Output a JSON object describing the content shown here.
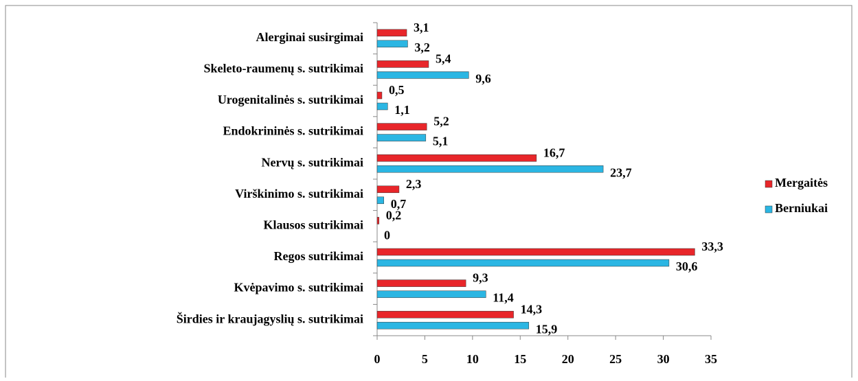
{
  "chart_data": {
    "type": "bar",
    "orientation": "horizontal",
    "categories": [
      "Alerginai susirgimai",
      "Skeleto-raumenų s. sutrikimai",
      "Urogenitalinės s. sutrikimai",
      "Endokrininės s. sutrikimai",
      "Nervų s. sutrikimai",
      "Virškinimo s. sutrikimai",
      "Klausos sutrikimai",
      "Regos sutrikimai",
      "Kvėpavimo s. sutrikimai",
      "Širdies ir kraujagyslių s. sutrikimai"
    ],
    "series": [
      {
        "name": "Mergaitės",
        "color": "#e8262a",
        "values": [
          3.1,
          5.4,
          0.5,
          5.2,
          16.7,
          2.3,
          0.2,
          33.3,
          9.3,
          14.3
        ],
        "value_labels": [
          "3,1",
          "5,4",
          "0,5",
          "5,2",
          "16,7",
          "2,3",
          "0,2",
          "33,3",
          "9,3",
          "14,3"
        ]
      },
      {
        "name": "Berniukai",
        "color": "#2bb6e3",
        "values": [
          3.2,
          9.6,
          1.1,
          5.1,
          23.7,
          0.7,
          0,
          30.6,
          11.4,
          15.9
        ],
        "value_labels": [
          "3,2",
          "9,6",
          "1,1",
          "5,1",
          "23,7",
          "0,7",
          "0",
          "30,6",
          "11,4",
          "15,9"
        ]
      }
    ],
    "xlim": [
      0,
      35
    ],
    "xticks": [
      0,
      5,
      10,
      15,
      20,
      25,
      30,
      35
    ],
    "legend": "right"
  }
}
